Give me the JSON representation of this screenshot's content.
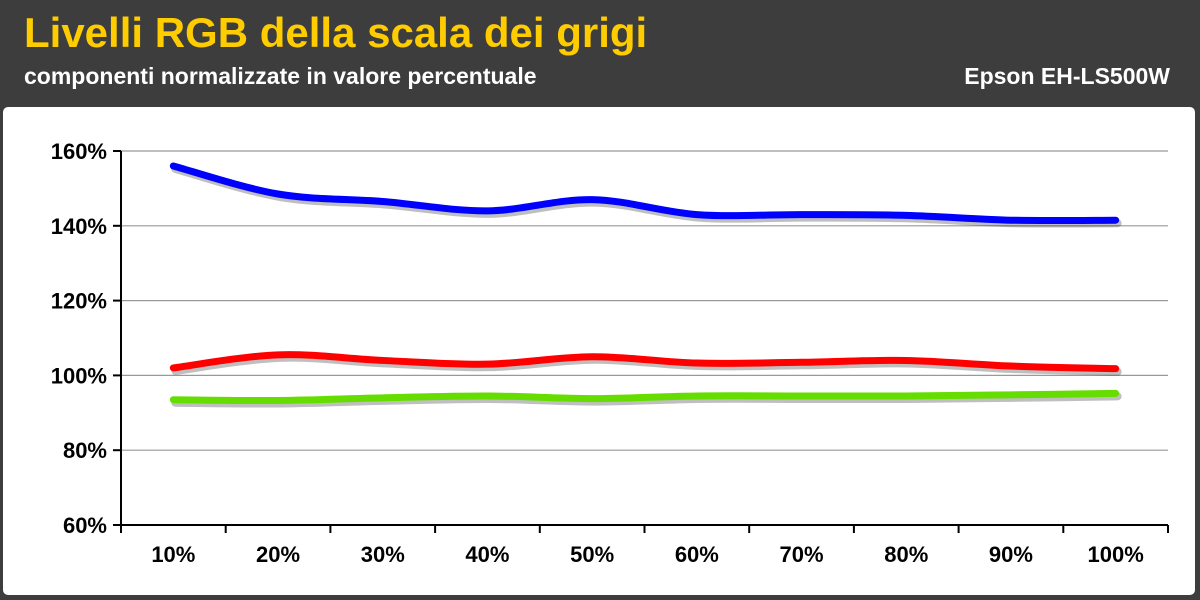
{
  "header": {
    "title": "Livelli RGB della scala dei grigi",
    "subtitle": "componenti normalizzate in valore percentuale",
    "model": "Epson EH-LS500W"
  },
  "colors": {
    "title": "#ffcc00",
    "header_bg": "#3d3d3d",
    "grid": "#999999",
    "red": "#ff0000",
    "green": "#66dd00",
    "blue": "#0000ff"
  },
  "chart_data": {
    "type": "line",
    "categories": [
      "10%",
      "20%",
      "30%",
      "40%",
      "50%",
      "60%",
      "70%",
      "80%",
      "90%",
      "100%"
    ],
    "ylim": [
      60,
      160
    ],
    "yticks": [
      60,
      80,
      100,
      120,
      140,
      160
    ],
    "ytick_labels": [
      "60%",
      "80%",
      "100%",
      "120%",
      "140%",
      "160%"
    ],
    "grid": true,
    "legend": "none",
    "series": [
      {
        "color": "#0000ff",
        "values": [
          156,
          148.5,
          146.5,
          144,
          147,
          143,
          143,
          142.8,
          141.5,
          141.5
        ]
      },
      {
        "color": "#ff0000",
        "values": [
          102,
          105.5,
          104,
          103,
          105,
          103.3,
          103.5,
          104,
          102.5,
          101.8
        ]
      },
      {
        "color": "#66dd00",
        "values": [
          93.5,
          93.3,
          94,
          94.5,
          93.8,
          94.5,
          94.5,
          94.5,
          94.8,
          95.2
        ]
      }
    ]
  }
}
